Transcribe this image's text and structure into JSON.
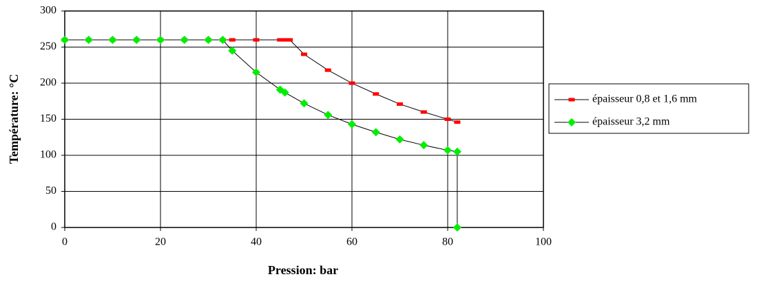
{
  "chart_data": {
    "type": "line",
    "x_label": "Pression: bar",
    "y_label": "Température: °C",
    "xlim": [
      0,
      100
    ],
    "xticks": [
      0,
      20,
      40,
      60,
      80,
      100
    ],
    "ylim": [
      0,
      300
    ],
    "yticks": [
      0,
      50,
      100,
      150,
      200,
      250,
      300
    ],
    "grid": true,
    "legend": "right",
    "series": [
      {
        "name": "épaisseur 0,8 et 1,6 mm",
        "color": "#ff0000",
        "marker": "dash",
        "x": [
          0,
          5,
          10,
          15,
          20,
          25,
          30,
          33,
          35,
          40,
          45,
          46,
          47,
          50,
          55,
          60,
          65,
          70,
          75,
          80,
          82
        ],
        "values": [
          260,
          260,
          260,
          260,
          260,
          260,
          260,
          260,
          260,
          260,
          260,
          260,
          260,
          240,
          218,
          200,
          185,
          171,
          160,
          150,
          146
        ]
      },
      {
        "name": "épaisseur 3,2 mm",
        "color": "#00ee00",
        "marker": "diamond",
        "x": [
          0,
          5,
          10,
          15,
          20,
          25,
          30,
          33,
          35,
          40,
          45,
          46,
          50,
          55,
          60,
          65,
          70,
          75,
          80,
          82,
          82
        ],
        "values": [
          260,
          260,
          260,
          260,
          260,
          260,
          260,
          260,
          245,
          215,
          191,
          187,
          172,
          156,
          143,
          132,
          122,
          114,
          107,
          105,
          0
        ]
      }
    ]
  }
}
